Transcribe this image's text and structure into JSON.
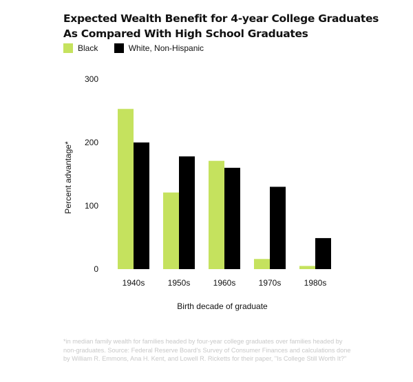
{
  "chart_data": {
    "type": "bar",
    "title": "Expected Wealth Benefit for 4-year College Graduates",
    "subtitle": "As Compared With High School Graduates",
    "xlabel": "Birth decade of graduate",
    "ylabel": "Percent advantage*",
    "categories": [
      "1940s",
      "1950s",
      "1960s",
      "1970s",
      "1980s"
    ],
    "series": [
      {
        "name": "Black",
        "color": "#c5e25e",
        "values": [
          253,
          121,
          171,
          16,
          5
        ]
      },
      {
        "name": "White, Non-Hispanic",
        "color": "#000000",
        "values": [
          200,
          178,
          160,
          130,
          49
        ]
      }
    ],
    "yticks": [
      0,
      100,
      200,
      300
    ],
    "ylim": [
      0,
      300
    ],
    "grid": false,
    "legend": "top-left"
  },
  "footnote": "*in median family wealth for families headed by four-year college graduates over families headed by non-graduates. Source: Federal Reserve Board's Survey of Consumer Finances and calculations done by William R. Emmons, Ana H. Kent, and Lowell R. Ricketts for their paper, \"Is College Still Worth It?\""
}
